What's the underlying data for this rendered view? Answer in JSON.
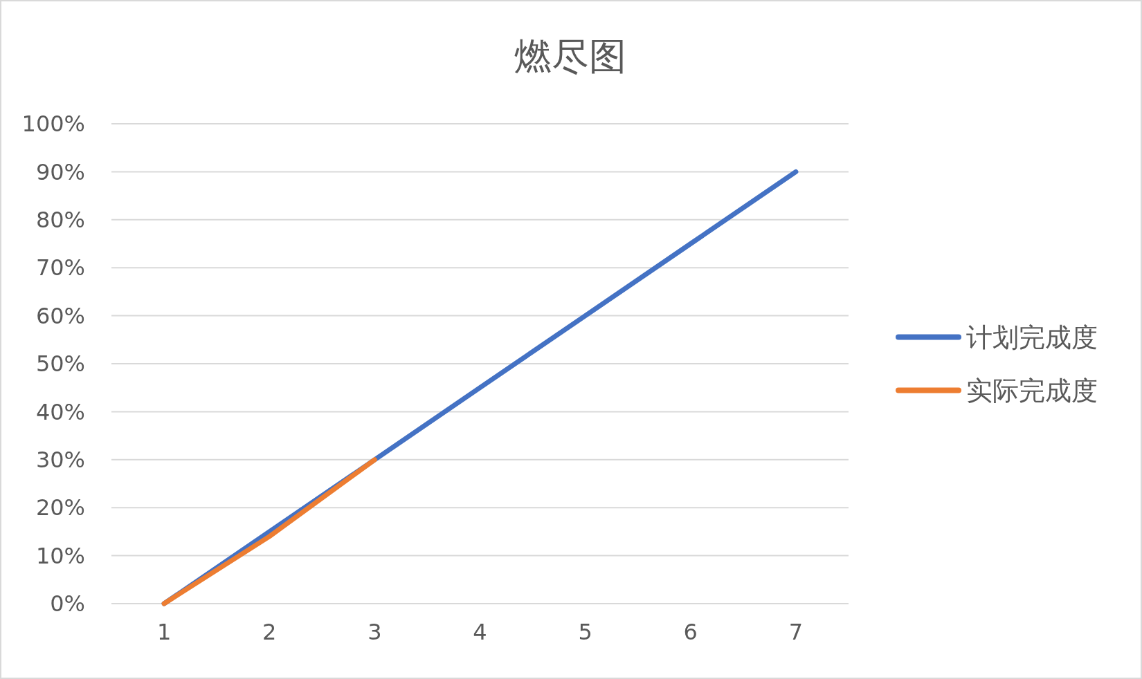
{
  "chart_data": {
    "type": "line",
    "title": "燃尽图",
    "categories": [
      "1",
      "2",
      "3",
      "4",
      "5",
      "6",
      "7"
    ],
    "series": [
      {
        "name": "计划完成度",
        "color": "#4472c4",
        "values": [
          0,
          0.15,
          0.3,
          0.45,
          0.6,
          0.75,
          0.9
        ]
      },
      {
        "name": "实际完成度",
        "color": "#ed7d31",
        "values": [
          0,
          0.14,
          0.3,
          null,
          null,
          null,
          null
        ]
      }
    ],
    "ylim": [
      0,
      1
    ],
    "yticks": [
      {
        "value": 0,
        "label": "0%"
      },
      {
        "value": 0.1,
        "label": "10%"
      },
      {
        "value": 0.2,
        "label": "20%"
      },
      {
        "value": 0.3,
        "label": "30%"
      },
      {
        "value": 0.4,
        "label": "40%"
      },
      {
        "value": 0.5,
        "label": "50%"
      },
      {
        "value": 0.6,
        "label": "60%"
      },
      {
        "value": 0.7,
        "label": "70%"
      },
      {
        "value": 0.8,
        "label": "80%"
      },
      {
        "value": 0.9,
        "label": "90%"
      },
      {
        "value": 1,
        "label": "100%"
      }
    ],
    "grid": "y",
    "legend": "right",
    "marker": "none",
    "line_style": "solid"
  }
}
